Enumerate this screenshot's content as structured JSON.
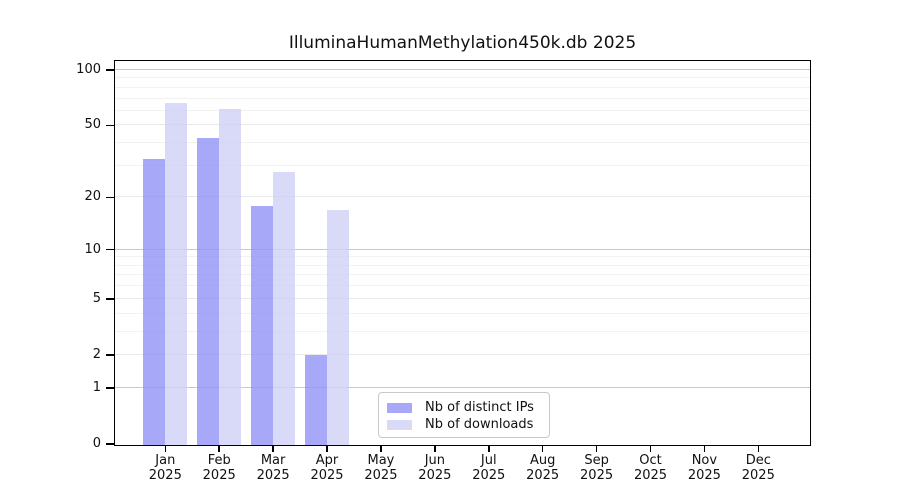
{
  "title": "IlluminaHumanMethylation450k.db 2025",
  "chart_data": {
    "type": "bar",
    "title": "IlluminaHumanMethylation450k.db 2025",
    "categories": [
      "Jan",
      "Feb",
      "Mar",
      "Apr",
      "May",
      "Jun",
      "Jul",
      "Aug",
      "Sep",
      "Oct",
      "Nov",
      "Dec"
    ],
    "category_year_label": "2025",
    "series": [
      {
        "name": "Nb of distinct IPs",
        "color": "#8F8FF7",
        "fill_opacity": 0.78,
        "values": [
          33,
          43,
          18,
          2,
          null,
          null,
          null,
          null,
          null,
          null,
          null,
          null
        ]
      },
      {
        "name": "Nb of downloads",
        "color": "#CECEF6",
        "fill_opacity": 0.78,
        "values": [
          67,
          62,
          28,
          17,
          null,
          null,
          null,
          null,
          null,
          null,
          null,
          null
        ]
      }
    ],
    "y_scale": "log1p",
    "ylim": [
      0,
      100
    ],
    "y_ticks": [
      0,
      1,
      2,
      5,
      10,
      20,
      50,
      100
    ],
    "y_major_gridlines": [
      1,
      10,
      100
    ],
    "y_mid_gridlines": [
      2,
      5,
      20,
      50
    ],
    "y_minor_gridlines": [
      3,
      4,
      6,
      7,
      8,
      9,
      30,
      40,
      60,
      70,
      80,
      90
    ],
    "grid": true,
    "legend_position": "bottom-center"
  },
  "legend": {
    "items": [
      {
        "label": "Nb of distinct IPs",
        "color": "#8F8FF7"
      },
      {
        "label": "Nb of downloads",
        "color": "#CECEF6"
      }
    ]
  }
}
